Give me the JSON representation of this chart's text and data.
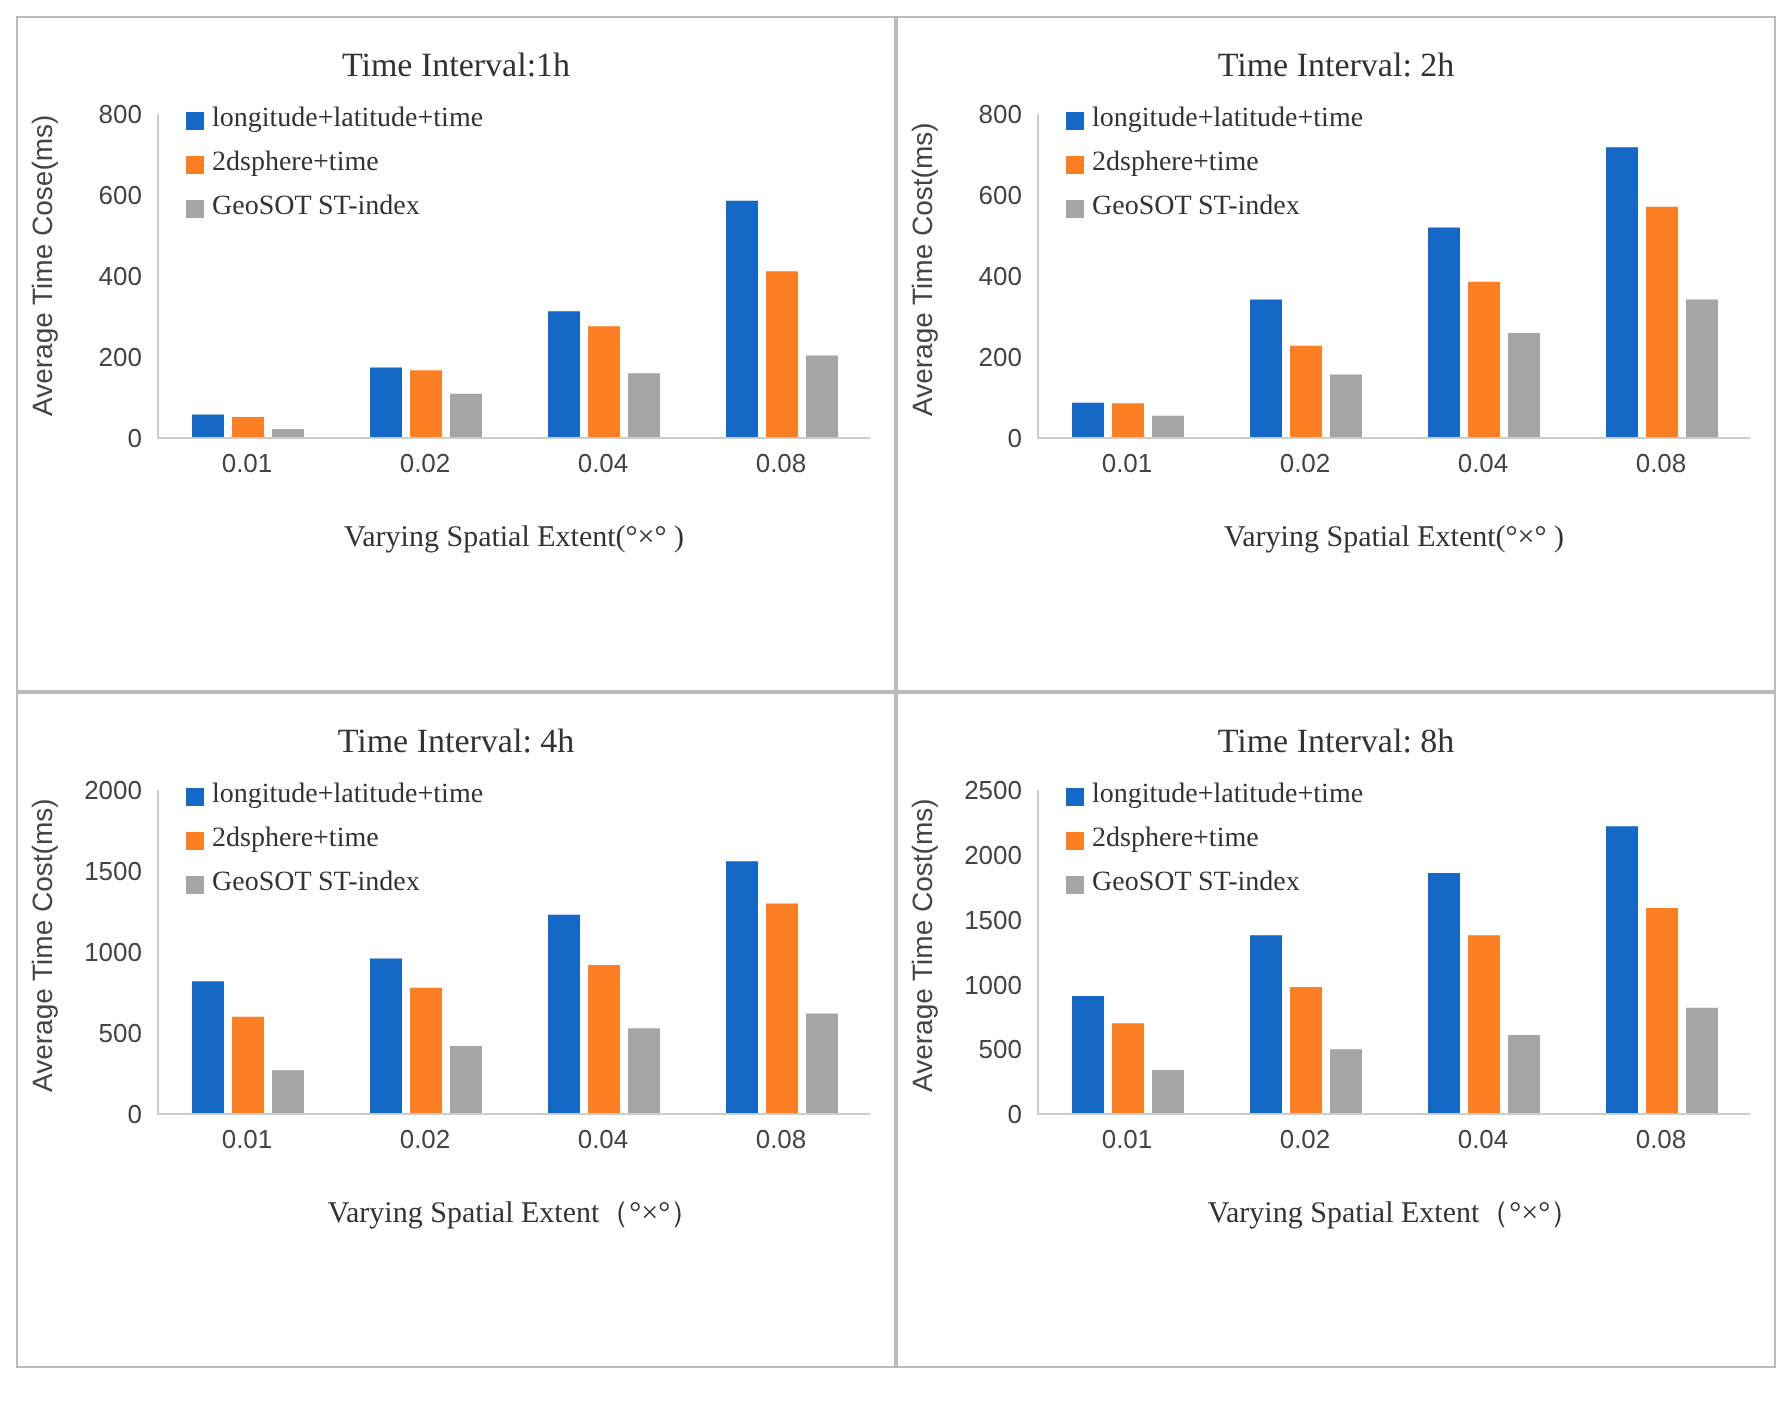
{
  "chart_data": [
    {
      "type": "bar",
      "title": "Time Interval:1h",
      "xlabel": "Varying Spatial Extent(°×° )",
      "ylabel": "Average Time Cose(ms)",
      "categories": [
        "0.01",
        "0.02",
        "0.04",
        "0.08"
      ],
      "ylim": [
        0,
        800
      ],
      "yticks": [
        0,
        200,
        400,
        600,
        800
      ],
      "legend": "top left",
      "series": [
        {
          "name": "longitude+latitude+time",
          "color": "#1469c7",
          "values": [
            58,
            174,
            313,
            586
          ]
        },
        {
          "name": "2dsphere+time",
          "color": "#fd7f23",
          "values": [
            52,
            167,
            276,
            412
          ]
        },
        {
          "name": "GeoSOT ST-index",
          "color": "#a5a5a5",
          "values": [
            22,
            109,
            160,
            204
          ]
        }
      ]
    },
    {
      "type": "bar",
      "title": "Time Interval: 2h",
      "xlabel": "Varying Spatial Extent(°×° )",
      "ylabel": "Average Time Cost(ms)",
      "categories": [
        "0.01",
        "0.02",
        "0.04",
        "0.08"
      ],
      "ylim": [
        0,
        800
      ],
      "yticks": [
        0,
        200,
        400,
        600,
        800
      ],
      "legend": "top left",
      "series": [
        {
          "name": "longitude+latitude+time",
          "color": "#1469c7",
          "values": [
            87,
            342,
            520,
            718
          ]
        },
        {
          "name": "2dsphere+time",
          "color": "#fd7f23",
          "values": [
            86,
            228,
            386,
            571
          ]
        },
        {
          "name": "GeoSOT ST-index",
          "color": "#a5a5a5",
          "values": [
            55,
            157,
            259,
            342
          ]
        }
      ]
    },
    {
      "type": "bar",
      "title": "Time Interval: 4h",
      "xlabel": "Varying Spatial Extent（°×°）",
      "ylabel": "Average Time Cost(ms)",
      "categories": [
        "0.01",
        "0.02",
        "0.04",
        "0.08"
      ],
      "ylim": [
        0,
        2000
      ],
      "yticks": [
        0,
        500,
        1000,
        1500,
        2000
      ],
      "legend": "top left",
      "series": [
        {
          "name": "longitude+latitude+time",
          "color": "#1469c7",
          "values": [
            820,
            960,
            1230,
            1560
          ]
        },
        {
          "name": "2dsphere+time",
          "color": "#fd7f23",
          "values": [
            600,
            780,
            920,
            1300
          ]
        },
        {
          "name": "GeoSOT ST-index",
          "color": "#a5a5a5",
          "values": [
            270,
            420,
            530,
            620
          ]
        }
      ]
    },
    {
      "type": "bar",
      "title": "Time Interval: 8h",
      "xlabel": "Varying Spatial Extent（°×°）",
      "ylabel": "Average Time Cost(ms)",
      "categories": [
        "0.01",
        "0.02",
        "0.04",
        "0.08"
      ],
      "ylim": [
        0,
        2500
      ],
      "yticks": [
        0,
        500,
        1000,
        1500,
        2000,
        2500
      ],
      "legend": "top left",
      "series": [
        {
          "name": "longitude+latitude+time",
          "color": "#1469c7",
          "values": [
            910,
            1380,
            1860,
            2220
          ]
        },
        {
          "name": "2dsphere+time",
          "color": "#fd7f23",
          "values": [
            700,
            980,
            1380,
            1590
          ]
        },
        {
          "name": "GeoSOT ST-index",
          "color": "#a5a5a5",
          "values": [
            340,
            500,
            610,
            820
          ]
        }
      ]
    }
  ]
}
